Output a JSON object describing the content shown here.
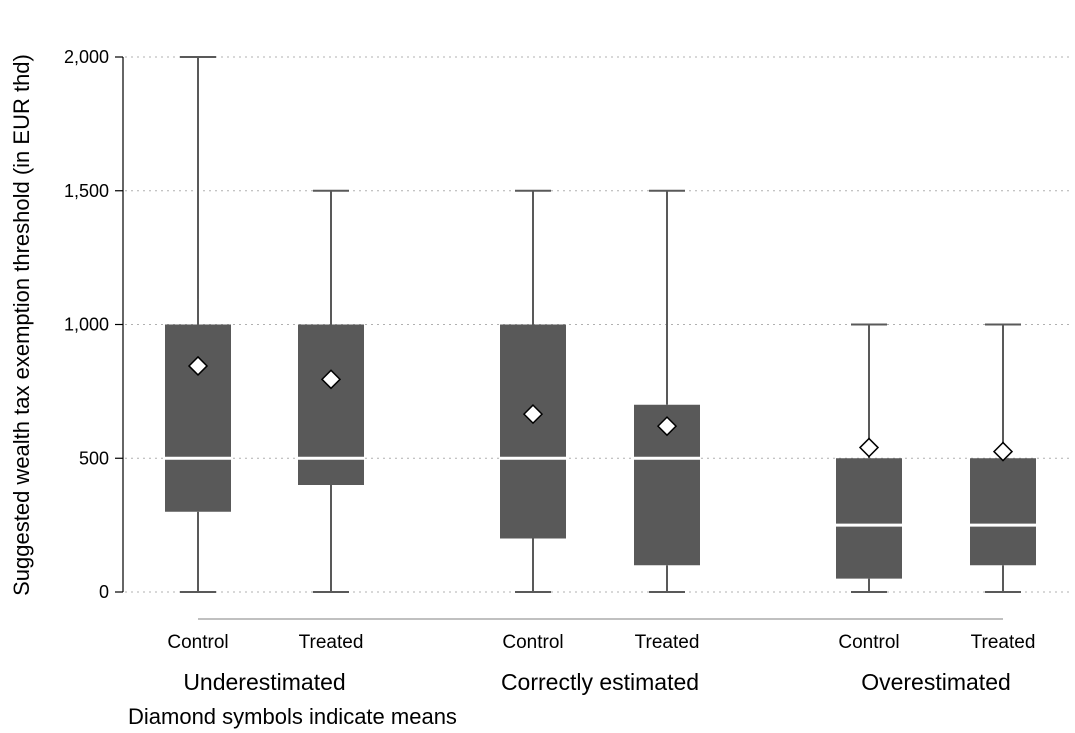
{
  "chart_data": {
    "type": "box",
    "ylabel": "Suggested wealth tax exemption threshold (in EUR thd)",
    "note": "Diamond symbols indicate means",
    "ylim": [
      0,
      2000
    ],
    "yticks": [
      0,
      500,
      1000,
      1500,
      2000
    ],
    "ytick_labels": [
      "0",
      "500",
      "1,000",
      "1,500",
      "2,000"
    ],
    "grid": true,
    "groups": [
      {
        "label": "Underestimated",
        "boxes": [
          {
            "category": "Control",
            "min": 0,
            "q1": 300,
            "median": 500,
            "q3": 1000,
            "max": 2000,
            "mean": 845
          },
          {
            "category": "Treated",
            "min": 0,
            "q1": 400,
            "median": 500,
            "q3": 1000,
            "max": 1500,
            "mean": 795
          }
        ]
      },
      {
        "label": "Correctly estimated",
        "boxes": [
          {
            "category": "Control",
            "min": 0,
            "q1": 200,
            "median": 500,
            "q3": 1000,
            "max": 1500,
            "mean": 665
          },
          {
            "category": "Treated",
            "min": 0,
            "q1": 100,
            "median": 500,
            "q3": 700,
            "max": 1500,
            "mean": 620
          }
        ]
      },
      {
        "label": "Overestimated",
        "boxes": [
          {
            "category": "Control",
            "min": 0,
            "q1": 50,
            "median": 250,
            "q3": 500,
            "max": 1000,
            "mean": 540
          },
          {
            "category": "Treated",
            "min": 0,
            "q1": 100,
            "median": 250,
            "q3": 500,
            "max": 1000,
            "mean": 525
          }
        ]
      }
    ]
  },
  "colors": {
    "box": "#595959",
    "whisker": "#595959",
    "median": "#ffffff",
    "grid": "#b0b0b0",
    "axis": "#000000",
    "mean_marker": "#000000"
  }
}
